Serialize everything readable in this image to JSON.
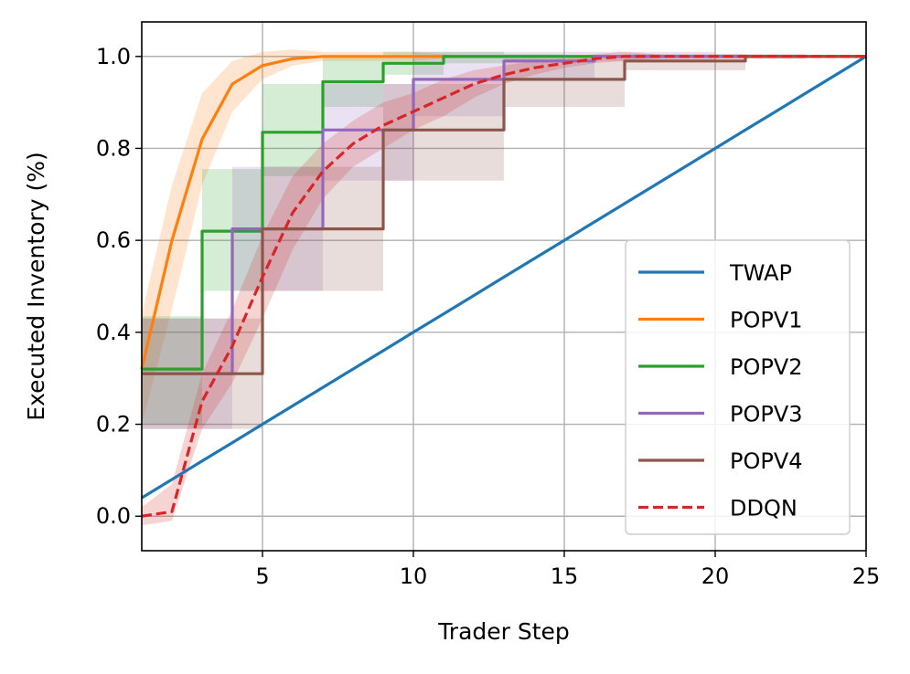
{
  "chart_data": {
    "type": "line",
    "xlabel": "Trader Step",
    "ylabel": "Executed Inventory (%)",
    "xlim": [
      1,
      25
    ],
    "ylim": [
      -0.075,
      1.075
    ],
    "xticks": [
      5,
      10,
      15,
      20,
      25
    ],
    "yticks": [
      0.0,
      0.2,
      0.4,
      0.6,
      0.8,
      1.0
    ],
    "ytick_labels": [
      "0.0",
      "0.2",
      "0.4",
      "0.6",
      "0.8",
      "1.0"
    ],
    "grid": true,
    "legend_position": "lower-right",
    "x": [
      1,
      2,
      3,
      4,
      5,
      6,
      7,
      8,
      9,
      10,
      11,
      12,
      13,
      14,
      15,
      16,
      17,
      18,
      19,
      20,
      21,
      22,
      23,
      24,
      25
    ],
    "series": [
      {
        "name": "TWAP",
        "color": "#1f77b4",
        "style": "solid",
        "values": [
          0.04,
          0.08,
          0.12,
          0.16,
          0.2,
          0.24,
          0.28,
          0.32,
          0.36,
          0.4,
          0.44,
          0.48,
          0.52,
          0.56,
          0.6,
          0.64,
          0.68,
          0.72,
          0.76,
          0.8,
          0.84,
          0.88,
          0.92,
          0.96,
          1.0
        ]
      },
      {
        "name": "POPV1",
        "color": "#ff7f0e",
        "style": "solid",
        "values": [
          0.32,
          0.6,
          0.82,
          0.94,
          0.98,
          0.995,
          1.0,
          1.0,
          1.0,
          1.0,
          1.0,
          1.0,
          1.0,
          1.0,
          1.0,
          1.0,
          1.0,
          1.0,
          1.0,
          1.0,
          1.0,
          1.0,
          1.0,
          1.0,
          1.0
        ],
        "lower": [
          0.2,
          0.45,
          0.72,
          0.88,
          0.95,
          0.98,
          0.99,
          0.99,
          0.99,
          0.99,
          0.995,
          1.0,
          1.0,
          1.0,
          1.0,
          1.0,
          1.0,
          1.0,
          1.0,
          1.0,
          1.0,
          1.0,
          1.0,
          1.0,
          1.0
        ],
        "upper": [
          0.44,
          0.72,
          0.92,
          0.99,
          1.01,
          1.015,
          1.01,
          1.01,
          1.01,
          1.01,
          1.005,
          1.0,
          1.0,
          1.0,
          1.0,
          1.0,
          1.0,
          1.0,
          1.0,
          1.0,
          1.0,
          1.0,
          1.0,
          1.0,
          1.0
        ]
      },
      {
        "name": "POPV2",
        "color": "#2ca02c",
        "style": "step",
        "values": [
          0.32,
          0.32,
          0.62,
          0.62,
          0.835,
          0.835,
          0.945,
          0.945,
          0.985,
          0.985,
          1.0,
          1.0,
          1.0,
          1.0,
          1.0,
          1.0,
          1.0,
          1.0,
          1.0,
          1.0,
          1.0,
          1.0,
          1.0,
          1.0,
          1.0
        ],
        "lower": [
          0.2,
          0.2,
          0.49,
          0.49,
          0.74,
          0.74,
          0.89,
          0.89,
          0.96,
          0.96,
          0.985,
          0.985,
          0.99,
          0.99,
          1.0,
          1.0,
          1.0,
          1.0,
          1.0,
          1.0,
          1.0,
          1.0,
          1.0,
          1.0,
          1.0
        ],
        "upper": [
          0.435,
          0.435,
          0.755,
          0.755,
          0.94,
          0.94,
          1.0,
          1.0,
          1.01,
          1.01,
          1.01,
          1.01,
          1.005,
          1.005,
          1.0,
          1.0,
          1.0,
          1.0,
          1.0,
          1.0,
          1.0,
          1.0,
          1.0,
          1.0,
          1.0
        ]
      },
      {
        "name": "POPV3",
        "color": "#9467bd",
        "style": "step",
        "values": [
          0.31,
          0.31,
          0.31,
          0.625,
          0.625,
          0.625,
          0.84,
          0.84,
          0.84,
          0.95,
          0.95,
          0.95,
          0.99,
          0.99,
          0.99,
          1.0,
          1.0,
          1.0,
          1.0,
          1.0,
          1.0,
          1.0,
          1.0,
          1.0,
          1.0
        ],
        "lower": [
          0.19,
          0.19,
          0.19,
          0.49,
          0.49,
          0.49,
          0.73,
          0.73,
          0.73,
          0.87,
          0.87,
          0.87,
          0.95,
          0.95,
          0.95,
          0.99,
          0.99,
          0.99,
          0.99,
          0.995,
          1.0,
          1.0,
          1.0,
          1.0,
          1.0
        ],
        "upper": [
          0.43,
          0.43,
          0.43,
          0.76,
          0.76,
          0.76,
          0.94,
          0.94,
          0.94,
          1.01,
          1.01,
          1.01,
          1.01,
          1.01,
          1.01,
          1.01,
          1.01,
          1.01,
          1.01,
          1.005,
          1.0,
          1.0,
          1.0,
          1.0,
          1.0
        ]
      },
      {
        "name": "POPV4",
        "color": "#8c564b",
        "style": "step",
        "values": [
          0.31,
          0.31,
          0.31,
          0.31,
          0.625,
          0.625,
          0.625,
          0.625,
          0.84,
          0.84,
          0.84,
          0.84,
          0.95,
          0.95,
          0.95,
          0.95,
          0.99,
          0.99,
          0.99,
          0.99,
          1.0,
          1.0,
          1.0,
          1.0,
          1.0
        ],
        "lower": [
          0.19,
          0.19,
          0.19,
          0.19,
          0.49,
          0.49,
          0.49,
          0.49,
          0.73,
          0.73,
          0.73,
          0.73,
          0.89,
          0.89,
          0.89,
          0.89,
          0.97,
          0.97,
          0.97,
          0.97,
          0.995,
          0.995,
          1.0,
          1.0,
          1.0
        ],
        "upper": [
          0.43,
          0.43,
          0.43,
          0.43,
          0.76,
          0.76,
          0.76,
          0.76,
          0.94,
          0.94,
          0.94,
          0.94,
          0.995,
          0.995,
          0.995,
          0.995,
          1.005,
          1.005,
          1.005,
          1.005,
          1.005,
          1.005,
          1.0,
          1.0,
          1.0
        ]
      },
      {
        "name": "DDQN",
        "color": "#d62728",
        "style": "dashed",
        "values": [
          0.0,
          0.01,
          0.25,
          0.37,
          0.52,
          0.66,
          0.75,
          0.81,
          0.85,
          0.88,
          0.91,
          0.94,
          0.96,
          0.975,
          0.985,
          0.995,
          1.0,
          1.0,
          1.0,
          1.0,
          1.0,
          1.0,
          1.0,
          1.0,
          1.0
        ],
        "lower": [
          -0.02,
          -0.01,
          0.19,
          0.29,
          0.43,
          0.58,
          0.69,
          0.76,
          0.8,
          0.84,
          0.87,
          0.91,
          0.94,
          0.96,
          0.975,
          0.985,
          0.99,
          0.995,
          1.0,
          1.0,
          1.0,
          1.0,
          1.0,
          1.0,
          1.0
        ],
        "upper": [
          0.02,
          0.07,
          0.31,
          0.45,
          0.61,
          0.74,
          0.81,
          0.86,
          0.9,
          0.92,
          0.95,
          0.97,
          0.98,
          0.99,
          0.995,
          1.005,
          1.01,
          1.005,
          1.0,
          1.0,
          1.0,
          1.0,
          1.0,
          1.0,
          1.0
        ]
      }
    ]
  }
}
